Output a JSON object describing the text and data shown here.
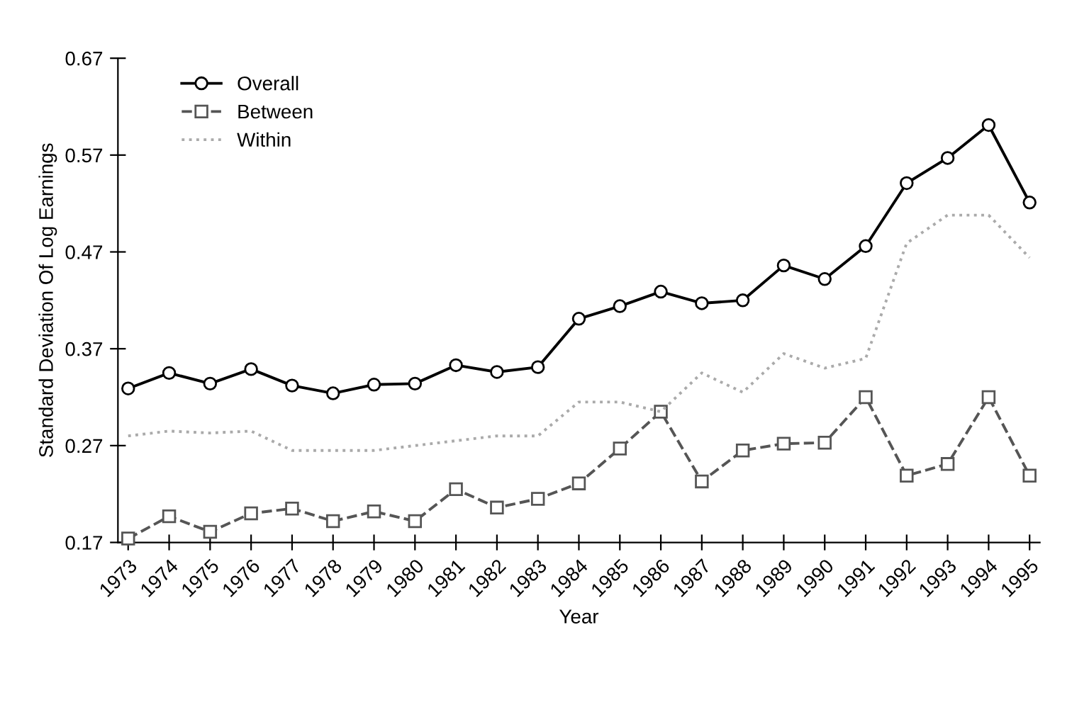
{
  "chart_data": {
    "type": "line",
    "xlabel": "Year",
    "ylabel": "Standard Deviation Of Log Earnings",
    "categories": [
      "1973",
      "1974",
      "1975",
      "1976",
      "1977",
      "1978",
      "1979",
      "1980",
      "1981",
      "1982",
      "1983",
      "1984",
      "1985",
      "1986",
      "1987",
      "1988",
      "1989",
      "1990",
      "1991",
      "1992",
      "1993",
      "1994",
      "1995"
    ],
    "series": [
      {
        "name": "Overall",
        "color": "#000000",
        "marker": "circle",
        "line_style": "solid",
        "values": [
          0.329,
          0.345,
          0.334,
          0.349,
          0.332,
          0.324,
          0.333,
          0.334,
          0.353,
          0.346,
          0.351,
          0.401,
          0.414,
          0.429,
          0.417,
          0.42,
          0.456,
          0.442,
          0.476,
          0.541,
          0.567,
          0.601,
          0.521
        ]
      },
      {
        "name": "Between",
        "color": "#555555",
        "marker": "square",
        "line_style": "dashed",
        "values": [
          0.174,
          0.197,
          0.181,
          0.2,
          0.205,
          0.192,
          0.202,
          0.192,
          0.225,
          0.206,
          0.215,
          0.231,
          0.267,
          0.305,
          0.233,
          0.265,
          0.272,
          0.273,
          0.32,
          0.239,
          0.251,
          0.32,
          0.239
        ]
      },
      {
        "name": "Within",
        "color": "#aaaaaa",
        "marker": "none",
        "line_style": "dotted",
        "values": [
          0.28,
          0.285,
          0.283,
          0.285,
          0.265,
          0.265,
          0.265,
          0.27,
          0.275,
          0.28,
          0.28,
          0.315,
          0.315,
          0.305,
          0.345,
          0.325,
          0.365,
          0.35,
          0.36,
          0.479,
          0.508,
          0.508,
          0.464
        ]
      }
    ],
    "ylim": [
      0.17,
      0.67
    ],
    "yticks": [
      0.17,
      0.27,
      0.37,
      0.47,
      0.57,
      0.67
    ],
    "grid": false,
    "legend": "top left"
  }
}
